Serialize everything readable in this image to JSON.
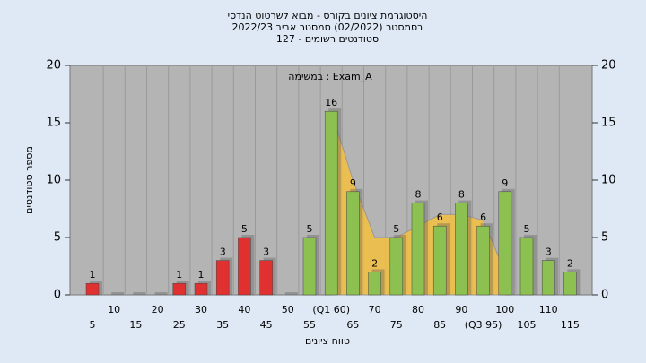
{
  "chart_data": {
    "type": "bar",
    "title": [
      "היסטוגרמת ציונים בקורס - מבוא לשרטוט הנדסי",
      "בסמסטר  (02/2022)  סמסטר אביב 2022/23",
      "סטודנטים רשומים - 127"
    ],
    "annotation": "במשימה : Exam_A",
    "ylabel": "מספר סטודנטים",
    "xlabel": "טווח ציונים",
    "categories": [
      "5",
      "10",
      "15",
      "20",
      "25",
      "30",
      "35",
      "40",
      "45",
      "50",
      "55",
      "(Q1 60)",
      "65",
      "70",
      "75",
      "80",
      "85",
      "90",
      "(Q3 95)",
      "100",
      "105",
      "110",
      "115"
    ],
    "values": [
      1,
      0,
      0,
      0,
      1,
      1,
      3,
      5,
      3,
      0,
      5,
      16,
      9,
      2,
      5,
      8,
      6,
      8,
      6,
      9,
      5,
      3,
      2
    ],
    "colors": [
      "#e03030",
      "#e03030",
      "#e03030",
      "#e03030",
      "#e03030",
      "#e03030",
      "#e03030",
      "#e03030",
      "#e03030",
      "#e03030",
      "#8cc050",
      "#8cc050",
      "#8cc050",
      "#8cc050",
      "#8cc050",
      "#8cc050",
      "#8cc050",
      "#8cc050",
      "#8cc050",
      "#8cc050",
      "#8cc050",
      "#8cc050",
      "#8cc050"
    ],
    "area": {
      "color": "#f5c040",
      "values": [
        null,
        null,
        null,
        null,
        null,
        null,
        null,
        null,
        null,
        null,
        null,
        16,
        10,
        5,
        5,
        6,
        7,
        7,
        6.5,
        2,
        null,
        null,
        null
      ]
    },
    "ylim": [
      0,
      20
    ],
    "yticks": [
      0,
      5,
      10,
      15,
      20
    ],
    "y2lim": [
      0,
      20
    ],
    "y2ticks": [
      0,
      5,
      10,
      15,
      20
    ]
  }
}
